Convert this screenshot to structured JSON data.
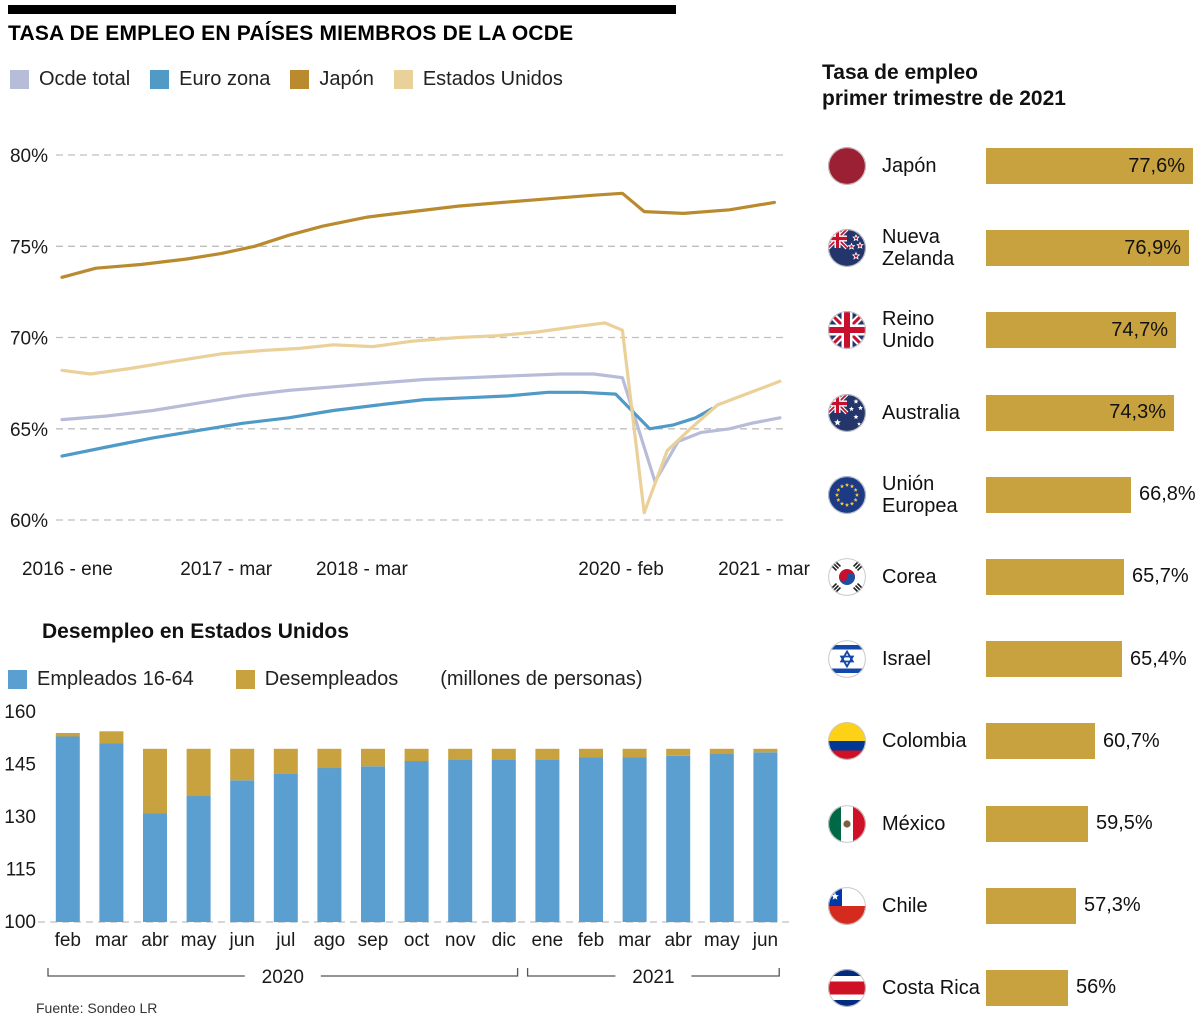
{
  "header": {
    "title": "TASA DE EMPLEO EN PAÍSES MIEMBROS DE LA OCDE"
  },
  "footer": {
    "source": "Fuente: Sondeo LR"
  },
  "chart_data": [
    {
      "id": "ocde-employment-rate-lines",
      "type": "line",
      "ylim": [
        60,
        80
      ],
      "y_ticks": [
        80,
        75,
        70,
        65,
        60
      ],
      "xlim": [
        2016.0,
        2021.35
      ],
      "x_ticks": [
        {
          "t": 2016.04,
          "label": "2016 - ene"
        },
        {
          "t": 2017.21,
          "label": "2017 - mar"
        },
        {
          "t": 2018.21,
          "label": "2018 - mar"
        },
        {
          "t": 2020.12,
          "label": "2020 - feb"
        },
        {
          "t": 2021.21,
          "label": "2021 - mar"
        }
      ],
      "series": [
        {
          "key": "ocde-total",
          "name": "Ocde total",
          "color": "#b7bcd8",
          "points": [
            [
              2016.0,
              65.5
            ],
            [
              2016.33,
              65.7
            ],
            [
              2016.67,
              66.0
            ],
            [
              2017.0,
              66.4
            ],
            [
              2017.33,
              66.8
            ],
            [
              2017.67,
              67.1
            ],
            [
              2018.0,
              67.3
            ],
            [
              2018.33,
              67.5
            ],
            [
              2018.67,
              67.7
            ],
            [
              2019.0,
              67.8
            ],
            [
              2019.33,
              67.9
            ],
            [
              2019.67,
              68.0
            ],
            [
              2019.92,
              68.0
            ],
            [
              2020.13,
              67.8
            ],
            [
              2020.37,
              62.1
            ],
            [
              2020.54,
              64.3
            ],
            [
              2020.71,
              64.8
            ],
            [
              2020.92,
              65.0
            ],
            [
              2021.08,
              65.3
            ],
            [
              2021.29,
              65.6
            ]
          ]
        },
        {
          "key": "euro-zona",
          "name": "Euro zona",
          "color": "#4f9ac7",
          "points": [
            [
              2016.0,
              63.5
            ],
            [
              2016.33,
              64.0
            ],
            [
              2016.67,
              64.5
            ],
            [
              2017.0,
              64.9
            ],
            [
              2017.33,
              65.3
            ],
            [
              2017.67,
              65.6
            ],
            [
              2018.0,
              66.0
            ],
            [
              2018.33,
              66.3
            ],
            [
              2018.67,
              66.6
            ],
            [
              2019.0,
              66.7
            ],
            [
              2019.29,
              66.8
            ],
            [
              2019.58,
              67.0
            ],
            [
              2019.83,
              67.0
            ],
            [
              2020.08,
              66.9
            ],
            [
              2020.33,
              65.0
            ],
            [
              2020.5,
              65.2
            ],
            [
              2020.67,
              65.6
            ],
            [
              2020.79,
              66.1
            ]
          ]
        },
        {
          "key": "japon",
          "name": "Japón",
          "color": "#b98a2e",
          "points": [
            [
              2016.0,
              73.3
            ],
            [
              2016.25,
              73.8
            ],
            [
              2016.58,
              74.0
            ],
            [
              2016.92,
              74.3
            ],
            [
              2017.17,
              74.6
            ],
            [
              2017.42,
              75.0
            ],
            [
              2017.67,
              75.6
            ],
            [
              2017.92,
              76.1
            ],
            [
              2018.25,
              76.6
            ],
            [
              2018.58,
              76.9
            ],
            [
              2018.92,
              77.2
            ],
            [
              2019.25,
              77.4
            ],
            [
              2019.58,
              77.6
            ],
            [
              2019.92,
              77.8
            ],
            [
              2020.13,
              77.9
            ],
            [
              2020.29,
              76.9
            ],
            [
              2020.58,
              76.8
            ],
            [
              2020.92,
              77.0
            ],
            [
              2021.25,
              77.4
            ]
          ]
        },
        {
          "key": "estados-unidos",
          "name": "Estados Unidos",
          "color": "#ead099",
          "points": [
            [
              2016.0,
              68.2
            ],
            [
              2016.21,
              68.0
            ],
            [
              2016.5,
              68.3
            ],
            [
              2016.83,
              68.7
            ],
            [
              2017.17,
              69.1
            ],
            [
              2017.5,
              69.3
            ],
            [
              2017.75,
              69.4
            ],
            [
              2018.0,
              69.6
            ],
            [
              2018.29,
              69.5
            ],
            [
              2018.58,
              69.8
            ],
            [
              2018.92,
              70.0
            ],
            [
              2019.21,
              70.1
            ],
            [
              2019.5,
              70.3
            ],
            [
              2019.79,
              70.6
            ],
            [
              2020.0,
              70.8
            ],
            [
              2020.13,
              70.4
            ],
            [
              2020.29,
              60.4
            ],
            [
              2020.46,
              63.8
            ],
            [
              2020.63,
              65.0
            ],
            [
              2020.83,
              66.3
            ],
            [
              2021.04,
              66.9
            ],
            [
              2021.29,
              67.6
            ]
          ]
        }
      ]
    },
    {
      "id": "tasa-empleo-q1-2021",
      "type": "bar",
      "orientation": "horizontal",
      "title_line1": "Tasa de empleo",
      "title_line2": "primer trimestre de 2021",
      "bar_color": "#c8a23f",
      "countries": [
        {
          "name": "Japón",
          "flag": "japan",
          "value": 77.6,
          "label": "77,6%",
          "inside": true
        },
        {
          "name": "Nueva Zelanda",
          "flag": "newzealand",
          "value": 76.9,
          "label": "76,9%",
          "inside": true
        },
        {
          "name": "Reino Unido",
          "flag": "uk",
          "value": 74.7,
          "label": "74,7%",
          "inside": true
        },
        {
          "name": "Australia",
          "flag": "australia",
          "value": 74.3,
          "label": "74,3%",
          "inside": true
        },
        {
          "name": "Unión Europea",
          "flag": "eu",
          "value": 66.8,
          "label": "66,8%",
          "inside": false
        },
        {
          "name": "Corea",
          "flag": "southkorea",
          "value": 65.7,
          "label": "65,7%",
          "inside": false
        },
        {
          "name": "Israel",
          "flag": "israel",
          "value": 65.4,
          "label": "65,4%",
          "inside": false
        },
        {
          "name": "Colombia",
          "flag": "colombia",
          "value": 60.7,
          "label": "60,7%",
          "inside": false
        },
        {
          "name": "México",
          "flag": "mexico",
          "value": 59.5,
          "label": "59,5%",
          "inside": false
        },
        {
          "name": "Chile",
          "flag": "chile",
          "value": 57.3,
          "label": "57,3%",
          "inside": false
        },
        {
          "name": "Costa Rica",
          "flag": "costarica",
          "value": 56,
          "label": "56%",
          "inside": false
        }
      ]
    },
    {
      "id": "us-employment-stacked",
      "type": "bar",
      "stacked": true,
      "title": "Desempleo en Estados Unidos",
      "note": "(millones de personas)",
      "ylim": [
        100,
        160
      ],
      "y_ticks": [
        160,
        145,
        130,
        115,
        100
      ],
      "months": [
        "feb",
        "mar",
        "abr",
        "may",
        "jun",
        "jul",
        "ago",
        "sep",
        "oct",
        "nov",
        "dic",
        "ene",
        "feb",
        "mar",
        "abr",
        "may",
        "jun"
      ],
      "groups": [
        {
          "label": "2020",
          "from": 0,
          "to": 10
        },
        {
          "label": "2021",
          "from": 11,
          "to": 16
        }
      ],
      "series": [
        {
          "key": "empleados",
          "name": "Empleados 16-64",
          "color": "#5b9ed0",
          "values": [
            153,
            151,
            131,
            136,
            140.5,
            142.5,
            144,
            144.5,
            146,
            146.5,
            146.5,
            146.5,
            147,
            147,
            147.5,
            148,
            148.5
          ]
        },
        {
          "key": "desempleados",
          "name": "Desempleados",
          "color": "#c8a23f",
          "values": [
            1,
            3.5,
            18.5,
            13.5,
            9,
            7,
            5.5,
            5,
            3.5,
            3,
            3,
            3,
            2.5,
            2.5,
            2,
            1.5,
            1
          ]
        }
      ]
    }
  ]
}
